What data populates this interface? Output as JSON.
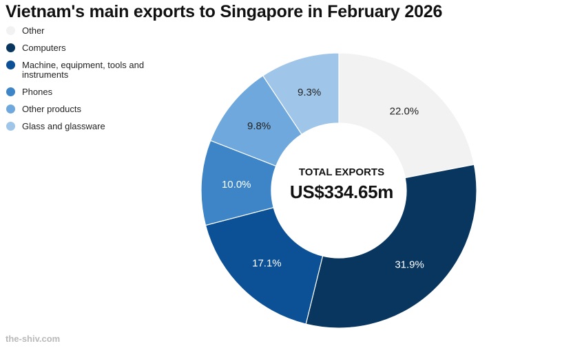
{
  "chart_data": {
    "type": "pie",
    "title": "Vietnam's main exports to Singapore in February 2026",
    "categories": [
      "Other",
      "Computers",
      "Machine, equipment, tools and instruments",
      "Phones",
      "Other products",
      "Glass and glassware"
    ],
    "values": [
      22.0,
      31.9,
      17.1,
      10.0,
      9.8,
      9.3
    ],
    "value_labels": [
      "22.0%",
      "31.9%",
      "17.1%",
      "10.0%",
      "9.8%",
      "9.3%"
    ],
    "colors": [
      "#f2f2f2",
      "#08365f",
      "#0c5196",
      "#3d85c6",
      "#6fa8dc",
      "#9fc5e8"
    ],
    "label_colors": [
      "#222222",
      "#ffffff",
      "#ffffff",
      "#ffffff",
      "#222222",
      "#222222"
    ],
    "donut": true,
    "legend_position": "left",
    "center_label": "TOTAL EXPORTS",
    "center_value": "US$334.65m"
  },
  "source": "the-shiv.com"
}
